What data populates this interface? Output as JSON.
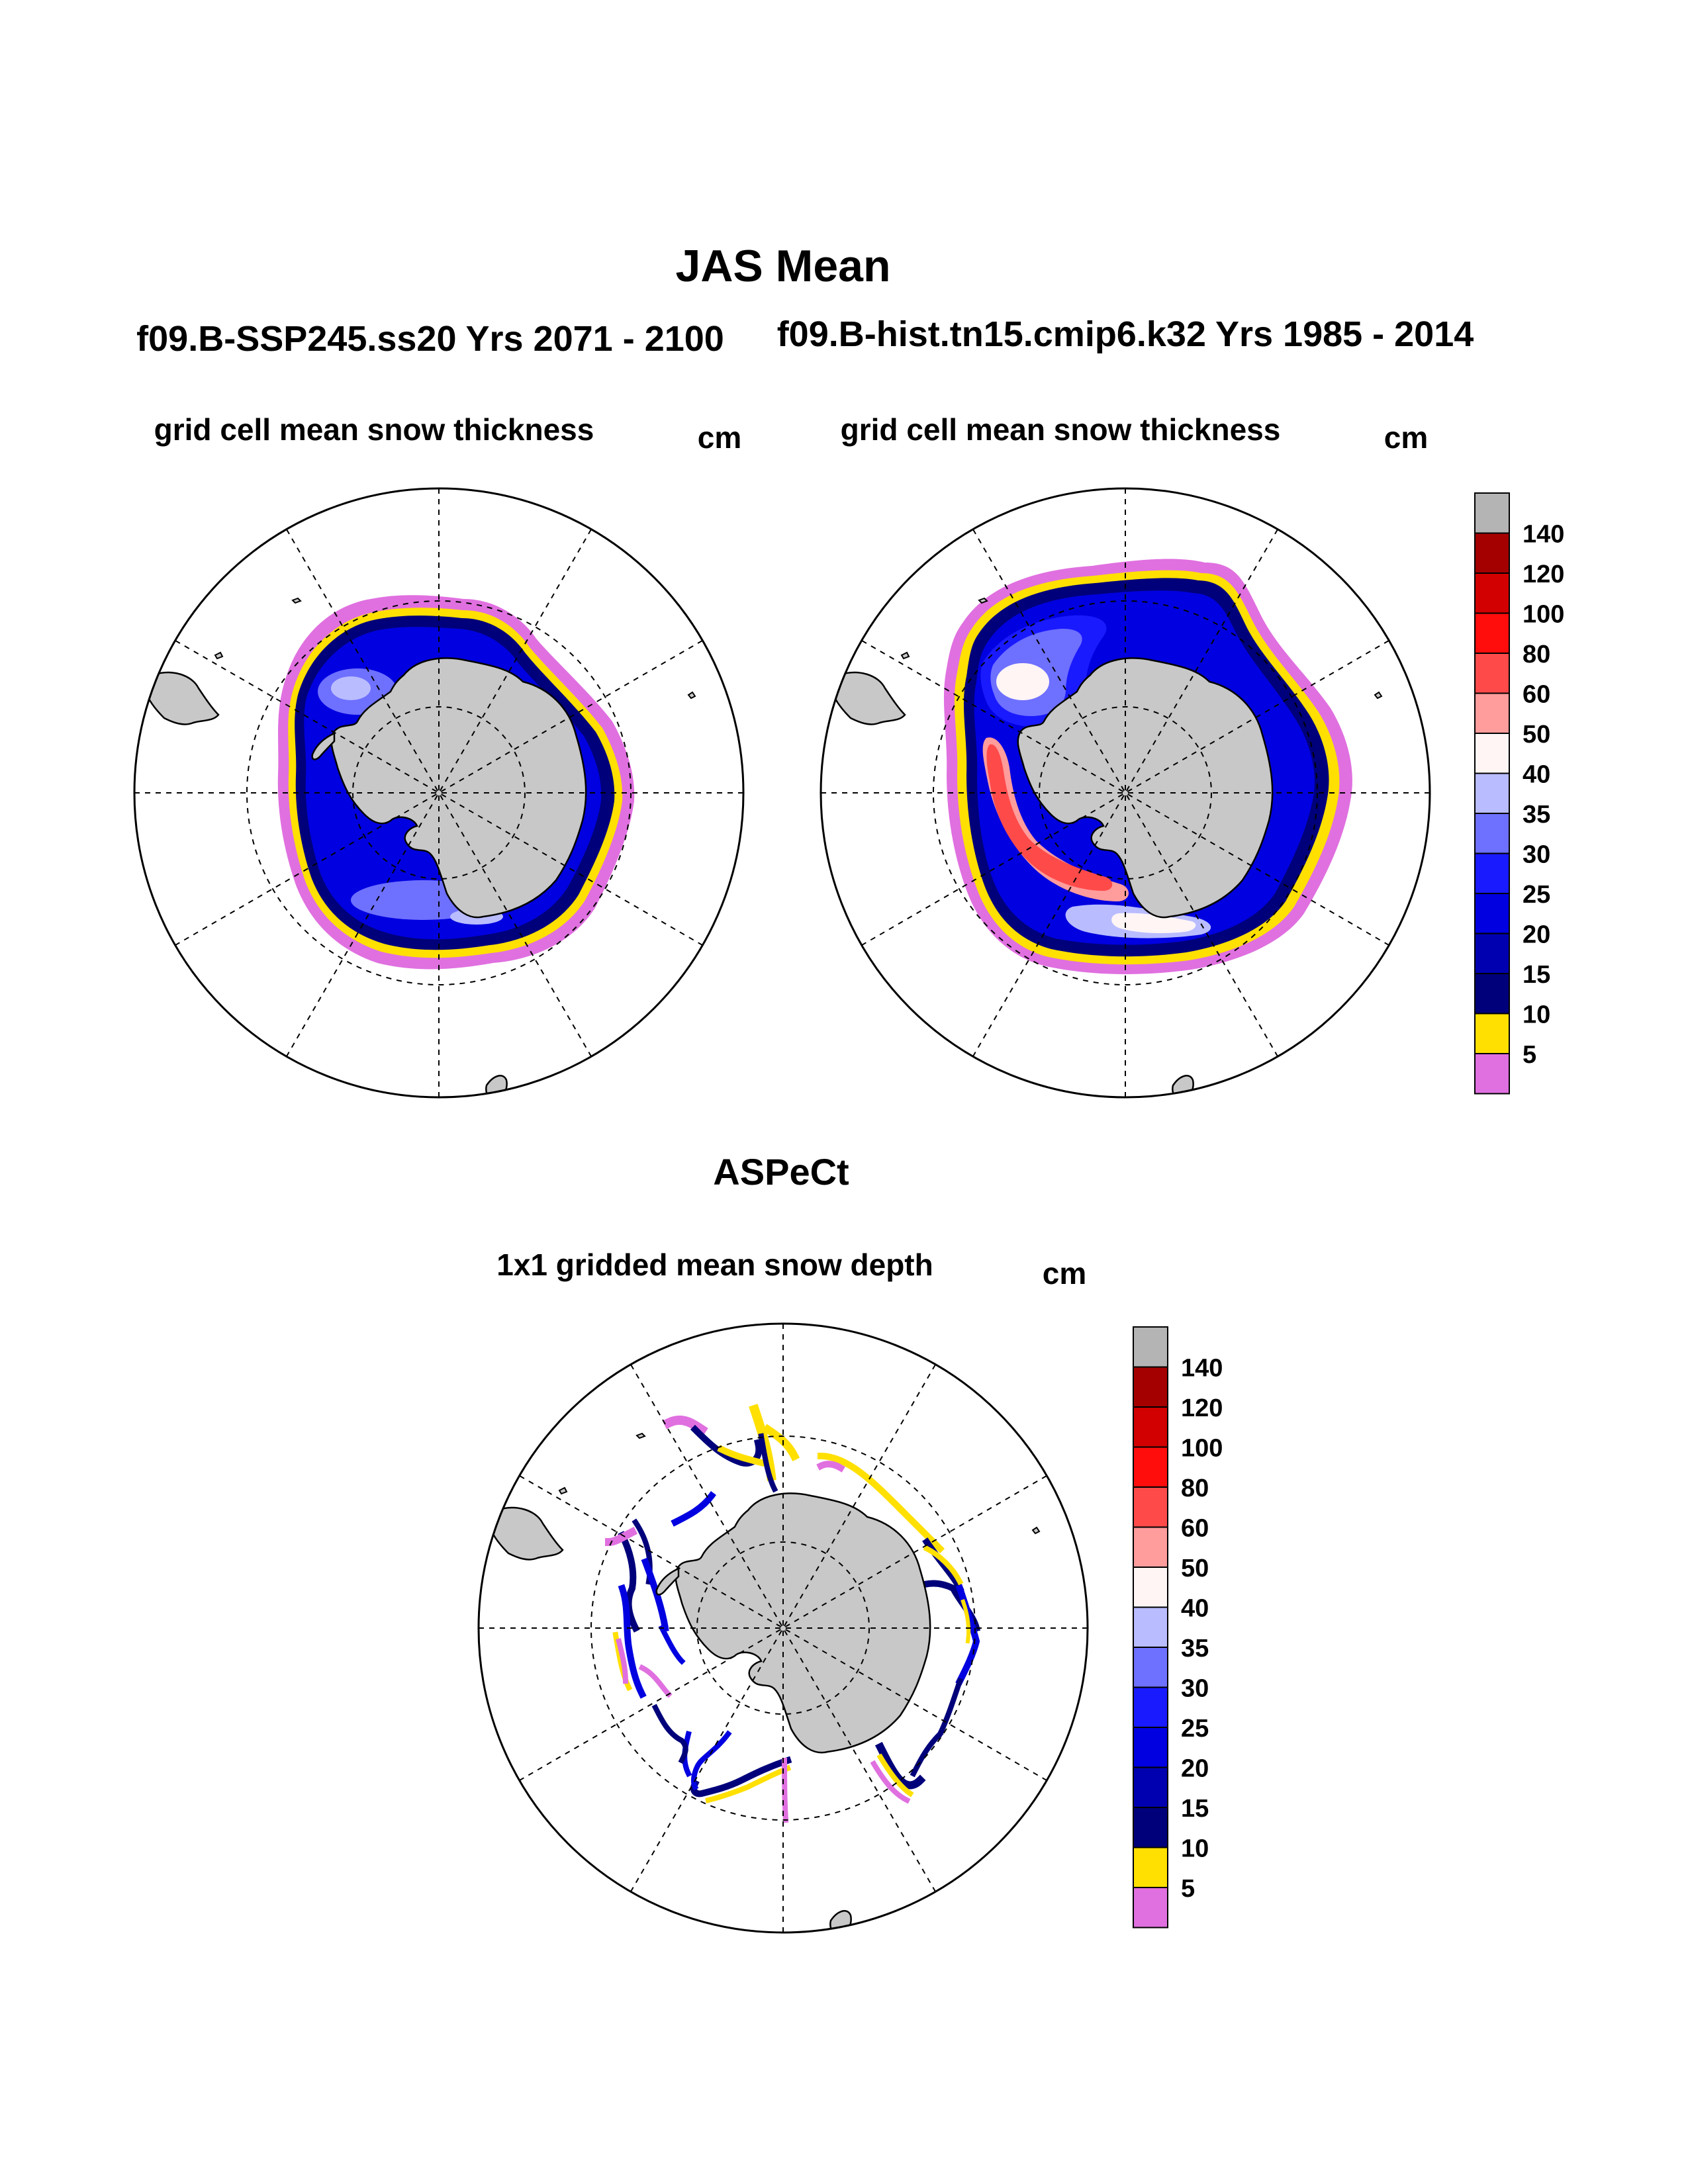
{
  "figure": {
    "title": "JAS Mean",
    "panels": [
      {
        "case_label": "f09.B-SSP245.ss20  Yrs 2071 - 2100",
        "subtitle": "grid cell mean snow thickness",
        "units": "cm"
      },
      {
        "case_label": "f09.B-hist.tn15.cmip6.k32  Yrs 1985 - 2014",
        "subtitle": "grid cell mean snow thickness",
        "units": "cm"
      },
      {
        "case_label": "ASPeCt",
        "subtitle": "1x1 gridded mean snow depth",
        "units": "cm"
      }
    ]
  },
  "colorbar": {
    "labels": [
      "140",
      "120",
      "100",
      "80",
      "60",
      "50",
      "40",
      "35",
      "30",
      "25",
      "20",
      "15",
      "10",
      "5"
    ],
    "colors": [
      "#b4b4b4",
      "#a50000",
      "#d20000",
      "#ff0d0d",
      "#ff4a4a",
      "#ff9c9c",
      "#fff5f5",
      "#b9bcff",
      "#6e70ff",
      "#1a1aff",
      "#0000e0",
      "#0000b0",
      "#00007a",
      "#ffe000",
      "#e070e0"
    ]
  },
  "map_colors": {
    "land": "#c8c8c8",
    "coast": "#000000",
    "grid": "#000000"
  }
}
